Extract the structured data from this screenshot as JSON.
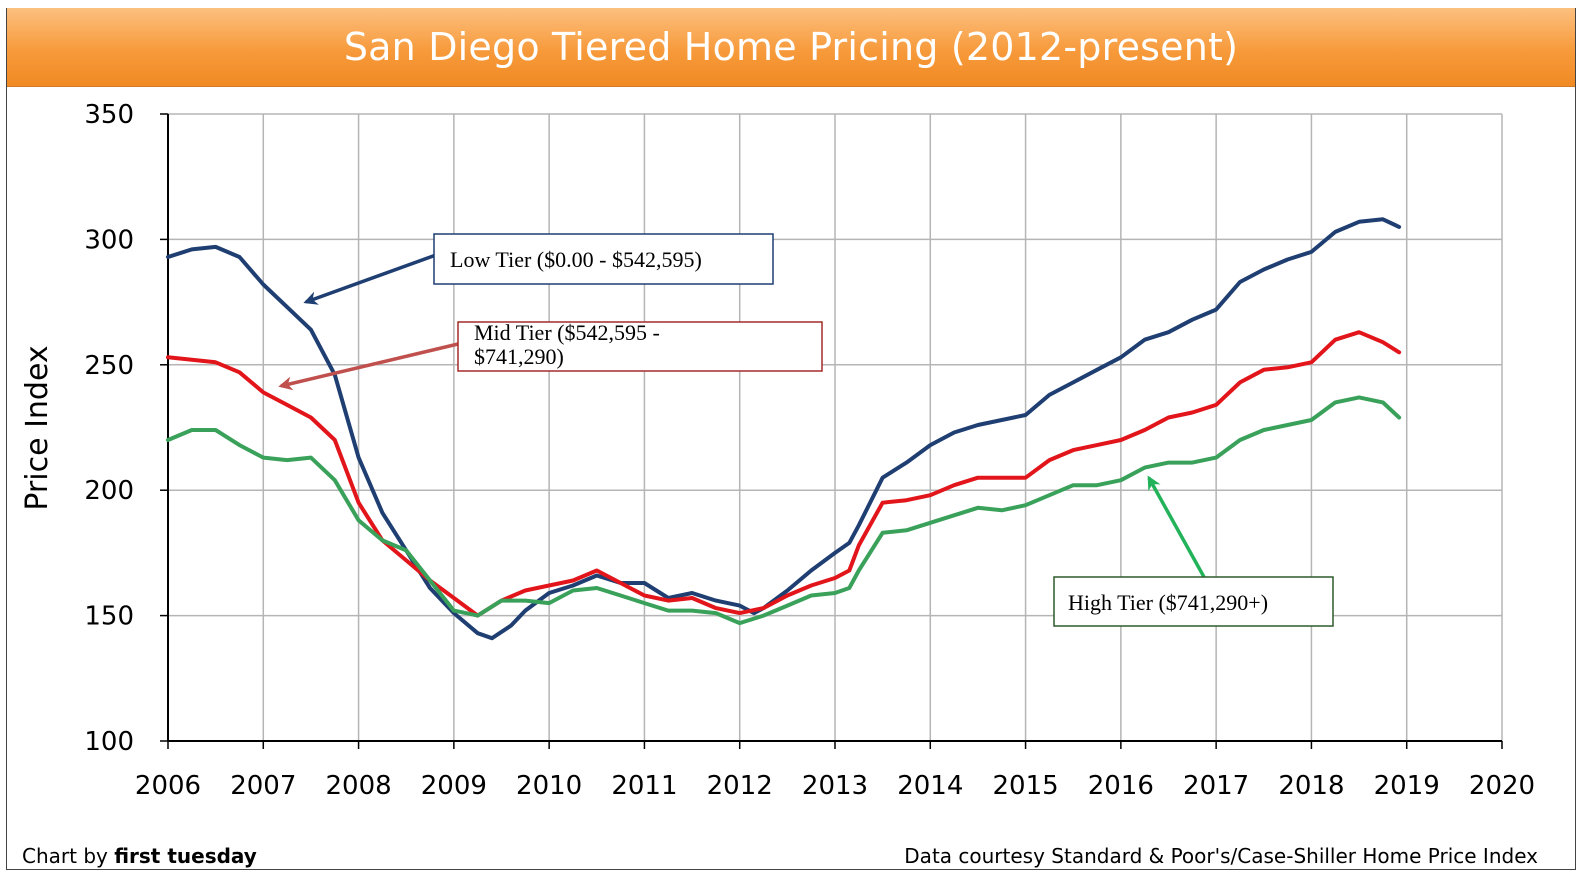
{
  "header": {
    "title": "San Diego Tiered Home Pricing (2012-present)"
  },
  "footer": {
    "credit_prefix": "Chart by ",
    "credit_name": "first tuesday",
    "source": "Data courtesy Standard & Poor's/Case-Shiller Home Price Index"
  },
  "chart_data": {
    "type": "line",
    "title": "San Diego Tiered Home Pricing (2012-present)",
    "xlabel": "",
    "ylabel": "Price Index",
    "xlim": [
      2006,
      2020
    ],
    "ylim": [
      100,
      350
    ],
    "x_ticks": [
      "2006",
      "2007",
      "2008",
      "2009",
      "2010",
      "2011",
      "2012",
      "2013",
      "2014",
      "2015",
      "2016",
      "2017",
      "2018",
      "2019",
      "2020"
    ],
    "y_ticks": [
      "350",
      "300",
      "250",
      "200",
      "150",
      "100"
    ],
    "grid": true,
    "legend": "callout labels",
    "series": [
      {
        "name": "Low Tier ($0.00 - $542,595)",
        "color": "#1f3e72",
        "x": [
          2006.0,
          2006.25,
          2006.5,
          2006.75,
          2007.0,
          2007.25,
          2007.5,
          2007.75,
          2008.0,
          2008.25,
          2008.5,
          2008.75,
          2009.0,
          2009.25,
          2009.4,
          2009.6,
          2009.75,
          2010.0,
          2010.25,
          2010.5,
          2010.75,
          2011.0,
          2011.25,
          2011.5,
          2011.75,
          2012.0,
          2012.15,
          2012.25,
          2012.5,
          2012.75,
          2013.0,
          2013.15,
          2013.25,
          2013.5,
          2013.75,
          2014.0,
          2014.25,
          2014.5,
          2014.75,
          2015.0,
          2015.25,
          2015.5,
          2015.75,
          2016.0,
          2016.25,
          2016.5,
          2016.75,
          2017.0,
          2017.25,
          2017.5,
          2017.75,
          2018.0,
          2018.25,
          2018.5,
          2018.75,
          2018.92
        ],
        "values": [
          293,
          296,
          297,
          293,
          282,
          273,
          264,
          246,
          213,
          191,
          176,
          161,
          151,
          143,
          141,
          146,
          152,
          159,
          162,
          166,
          163,
          163,
          157,
          159,
          156,
          154,
          151,
          153,
          160,
          168,
          175,
          179,
          186,
          205,
          211,
          218,
          223,
          226,
          228,
          230,
          238,
          243,
          248,
          253,
          260,
          263,
          268,
          272,
          283,
          288,
          292,
          295,
          303,
          307,
          308,
          305
        ]
      },
      {
        "name": "Mid Tier ($542,595 - $741,290)",
        "color": "#e2151b",
        "x": [
          2006.0,
          2006.25,
          2006.5,
          2006.75,
          2007.0,
          2007.25,
          2007.5,
          2007.75,
          2008.0,
          2008.25,
          2008.5,
          2008.75,
          2009.0,
          2009.25,
          2009.5,
          2009.75,
          2010.0,
          2010.25,
          2010.5,
          2010.75,
          2011.0,
          2011.25,
          2011.5,
          2011.75,
          2012.0,
          2012.25,
          2012.5,
          2012.75,
          2013.0,
          2013.15,
          2013.25,
          2013.5,
          2013.75,
          2014.0,
          2014.25,
          2014.5,
          2014.75,
          2015.0,
          2015.25,
          2015.5,
          2015.75,
          2016.0,
          2016.25,
          2016.5,
          2016.75,
          2017.0,
          2017.25,
          2017.5,
          2017.75,
          2018.0,
          2018.25,
          2018.5,
          2018.75,
          2018.92
        ],
        "values": [
          253,
          252,
          251,
          247,
          239,
          234,
          229,
          220,
          195,
          180,
          172,
          164,
          157,
          150,
          156,
          160,
          162,
          164,
          168,
          163,
          158,
          156,
          157,
          153,
          151,
          153,
          158,
          162,
          165,
          168,
          178,
          195,
          196,
          198,
          202,
          205,
          205,
          205,
          212,
          216,
          218,
          220,
          224,
          229,
          231,
          234,
          243,
          248,
          249,
          251,
          260,
          263,
          259,
          255
        ]
      },
      {
        "name": "High Tier ($741,290+)",
        "color": "#3aa15a",
        "x": [
          2006.0,
          2006.25,
          2006.5,
          2006.75,
          2007.0,
          2007.25,
          2007.5,
          2007.75,
          2008.0,
          2008.25,
          2008.5,
          2008.75,
          2009.0,
          2009.25,
          2009.5,
          2009.75,
          2010.0,
          2010.25,
          2010.5,
          2010.75,
          2011.0,
          2011.25,
          2011.5,
          2011.75,
          2012.0,
          2012.25,
          2012.5,
          2012.75,
          2013.0,
          2013.15,
          2013.25,
          2013.5,
          2013.75,
          2014.0,
          2014.25,
          2014.5,
          2014.75,
          2015.0,
          2015.25,
          2015.5,
          2015.75,
          2016.0,
          2016.25,
          2016.5,
          2016.75,
          2017.0,
          2017.25,
          2017.5,
          2017.75,
          2018.0,
          2018.25,
          2018.5,
          2018.75,
          2018.92
        ],
        "values": [
          220,
          224,
          224,
          218,
          213,
          212,
          213,
          204,
          188,
          180,
          176,
          164,
          152,
          150,
          156,
          156,
          155,
          160,
          161,
          158,
          155,
          152,
          152,
          151,
          147,
          150,
          154,
          158,
          159,
          161,
          168,
          183,
          184,
          187,
          190,
          193,
          192,
          194,
          198,
          202,
          202,
          204,
          209,
          211,
          211,
          213,
          220,
          224,
          226,
          228,
          235,
          237,
          235,
          229
        ]
      }
    ],
    "annotations": [
      {
        "id": "low",
        "text": [
          "Low Tier ($0.00 - $542,595)"
        ],
        "border": "#1f3e72",
        "arrow": "#1f3e72"
      },
      {
        "id": "mid",
        "text": [
          "Mid Tier ($542,595 -",
          "$741,290)"
        ],
        "border": "#a52a2a",
        "arrow": "#c0504d"
      },
      {
        "id": "high",
        "text": [
          "High Tier ($741,290+)"
        ],
        "border": "#2f5a2c",
        "arrow": "#22b35a"
      }
    ]
  }
}
